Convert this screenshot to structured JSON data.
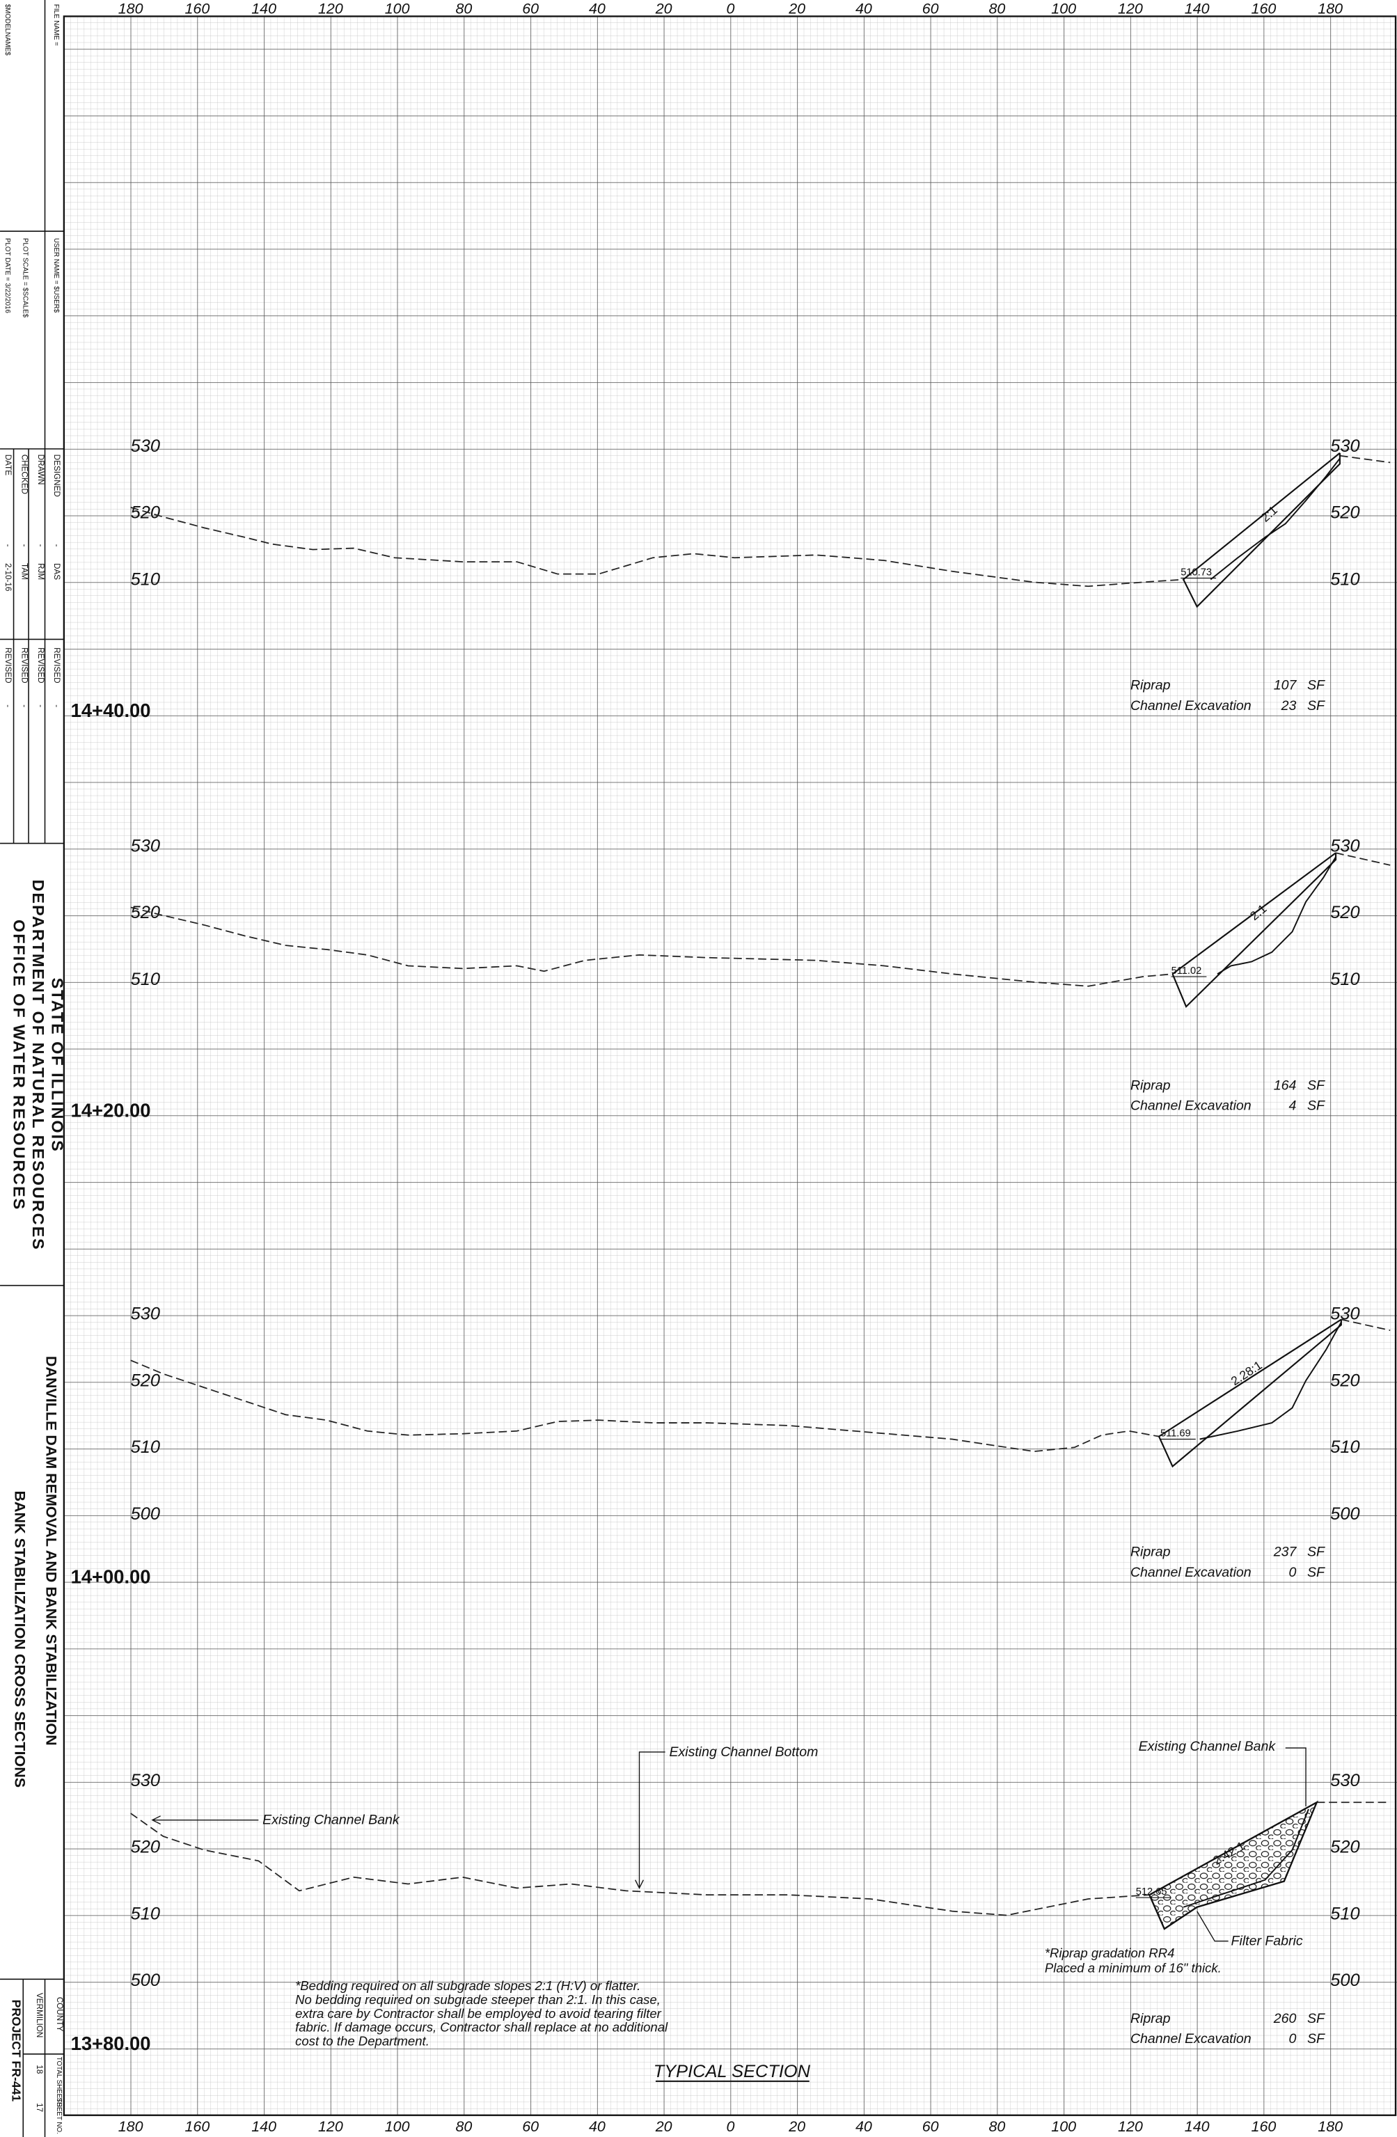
{
  "title_block": {
    "file_name": "FILE NAME =",
    "model_name": "$MODELNAME$",
    "user_name": "USER NAME = $USER$",
    "plot_scale": "PLOT SCALE = $SCALE$",
    "plot_date": "PLOT DATE = 3/22/2016",
    "signoffs": [
      [
        "DESIGNED",
        "-",
        "DAS"
      ],
      [
        "DRAWN",
        "-",
        "RJM"
      ],
      [
        "CHECKED",
        "-",
        "TAM"
      ],
      [
        "DATE",
        "-",
        "2-10-16"
      ]
    ],
    "revisions": [
      [
        "REVISED",
        "-"
      ],
      [
        "REVISED",
        "-"
      ],
      [
        "REVISED",
        "-"
      ],
      [
        "REVISED",
        "-"
      ]
    ],
    "agency": [
      "STATE OF ILLINOIS",
      "DEPARTMENT OF NATURAL RESOURCES",
      "OFFICE OF WATER RESOURCES"
    ],
    "project_title": "DANVILLE DAM REMOVAL AND BANK STABILIZATION",
    "sheet_title": "BANK STABILIZATION CROSS SECTIONS",
    "county_label": "COUNTY",
    "county": "VERMILION",
    "total_sheets_label": "TOTAL SHEETS",
    "total_sheets": 18,
    "sheet_no_label": "SHEET NO.",
    "sheet_no": 17,
    "project": "PROJECT FR-441"
  },
  "offset_axis": [
    180,
    160,
    140,
    120,
    100,
    80,
    60,
    40,
    20,
    0,
    20,
    40,
    60,
    80,
    100,
    120,
    140,
    160,
    180
  ],
  "sections": [
    {
      "station": "14+40.00",
      "elevations": [
        530,
        520,
        510
      ],
      "slope": "2:1",
      "callout": 510.73,
      "riprap": {
        "label": "Riprap",
        "value": 107,
        "unit": "SF"
      },
      "channel_excavation": {
        "label": "Channel Excavation",
        "value": 23,
        "unit": "SF"
      }
    },
    {
      "station": "14+20.00",
      "elevations": [
        530,
        520,
        510
      ],
      "slope": "2:1",
      "callout": 511.02,
      "riprap": {
        "label": "Riprap",
        "value": 164,
        "unit": "SF"
      },
      "channel_excavation": {
        "label": "Channel Excavation",
        "value": 4,
        "unit": "SF"
      }
    },
    {
      "station": "14+00.00",
      "elevations": [
        530,
        520,
        510,
        500
      ],
      "slope": "2.28:1",
      "callout": 511.69,
      "riprap": {
        "label": "Riprap",
        "value": 237,
        "unit": "SF"
      },
      "channel_excavation": {
        "label": "Channel Excavation",
        "value": 0,
        "unit": "SF"
      }
    },
    {
      "station": "13+80.00",
      "elevations": [
        530,
        520,
        510,
        500
      ],
      "slope": "2.42:1",
      "callout": 512.65,
      "riprap": {
        "label": "Riprap",
        "value": 260,
        "unit": "SF"
      },
      "channel_excavation": {
        "label": "Channel Excavation",
        "value": 0,
        "unit": "SF"
      }
    }
  ],
  "notes": {
    "existing_bank_left": "Existing Channel Bank",
    "existing_bottom": "Existing Channel Bottom",
    "existing_bank_right": "Existing Channel Bank",
    "filter_fabric": "Filter Fabric",
    "riprap_note": [
      "*Riprap gradation RR4",
      "Placed a minimum of 16\" thick."
    ],
    "bedding_note": [
      "*Bedding required on all subgrade slopes 2:1 (H:V) or flatter.",
      "No bedding required on subgrade steeper than 2:1. In this case,",
      "extra care by Contractor shall be employed to avoid tearing filter",
      "fabric. If damage occurs, Contractor shall replace at no additional",
      "cost to the Department."
    ],
    "typical_section": "TYPICAL SECTION"
  }
}
